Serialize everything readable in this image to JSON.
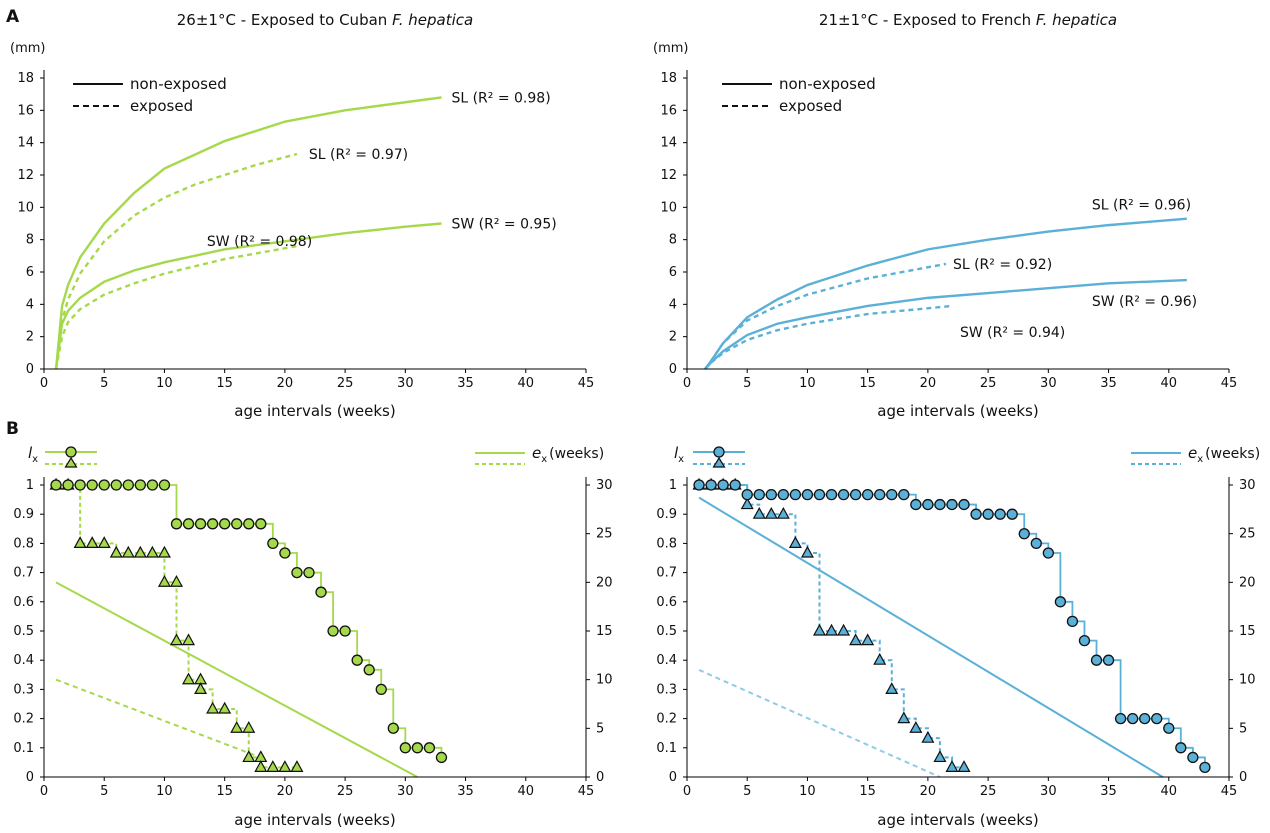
{
  "colors": {
    "green": "#a5d94b",
    "blue": "#5bb0d8",
    "ink": "#111111"
  },
  "panels": {
    "A": "A",
    "B": "B"
  },
  "legend": {
    "non_exposed": "non-exposed",
    "exposed": "exposed",
    "lx_main": "l",
    "lx_sub": "x",
    "ex_main": "e",
    "ex_sub": "x",
    "ex_unit": "(weeks)"
  },
  "charts": {
    "growth_left": {
      "type": "line",
      "title_pre": "26±1°C - Exposed to Cuban ",
      "title_italic": "F. hepatica",
      "unit": "(mm)",
      "xlabel": "age intervals (weeks)",
      "xlim": [
        0,
        45
      ],
      "ylim": [
        0,
        18
      ],
      "xticks": [
        0,
        5,
        10,
        15,
        20,
        25,
        30,
        35,
        40,
        45
      ],
      "yticks": [
        0,
        2,
        4,
        6,
        8,
        10,
        12,
        14,
        16,
        18
      ],
      "series": [
        {
          "label": "SL (R² = 0.98)",
          "style": "solid",
          "x": [
            1,
            1.5,
            2,
            3,
            5,
            7.5,
            10,
            15,
            20,
            25,
            30,
            33
          ],
          "y": [
            0,
            3.9,
            5.2,
            6.9,
            9.0,
            10.9,
            12.4,
            14.1,
            15.3,
            16.0,
            16.5,
            16.8
          ]
        },
        {
          "label": "SL (R² = 0.97)",
          "style": "dashed",
          "x": [
            1,
            1.5,
            2,
            3,
            5,
            7.5,
            10,
            12.5,
            15,
            17.5,
            21
          ],
          "y": [
            0,
            3.0,
            4.3,
            5.9,
            7.9,
            9.5,
            10.6,
            11.4,
            12.0,
            12.6,
            13.3
          ]
        },
        {
          "label": "SW (R² = 0.95)",
          "style": "solid",
          "x": [
            1,
            1.5,
            2,
            3,
            5,
            7.5,
            10,
            15,
            20,
            25,
            30,
            33
          ],
          "y": [
            0,
            2.8,
            3.6,
            4.4,
            5.4,
            6.1,
            6.6,
            7.4,
            7.9,
            8.4,
            8.8,
            9.0
          ]
        },
        {
          "label": "SW (R² = 0.98)",
          "style": "dashed",
          "x": [
            1,
            1.5,
            2,
            3,
            5,
            7.5,
            10,
            15,
            21
          ],
          "y": [
            0,
            2.0,
            2.9,
            3.7,
            4.6,
            5.3,
            5.9,
            6.8,
            7.6
          ]
        }
      ]
    },
    "growth_right": {
      "type": "line",
      "title_pre": "21±1°C - Exposed to French ",
      "title_italic": "F. hepatica",
      "unit": "(mm)",
      "xlabel": "age intervals (weeks)",
      "xlim": [
        0,
        45
      ],
      "ylim": [
        0,
        18
      ],
      "xticks": [
        0,
        5,
        10,
        15,
        20,
        25,
        30,
        35,
        40,
        45
      ],
      "yticks": [
        0,
        2,
        4,
        6,
        8,
        10,
        12,
        14,
        16,
        18
      ],
      "series": [
        {
          "label": "SL (R² = 0.96)",
          "style": "solid",
          "x": [
            1.5,
            2,
            3,
            5,
            7.5,
            10,
            15,
            20,
            25,
            30,
            35,
            41.5
          ],
          "y": [
            0,
            0.5,
            1.6,
            3.2,
            4.3,
            5.2,
            6.4,
            7.4,
            8.0,
            8.5,
            8.9,
            9.3
          ]
        },
        {
          "label": "SL (R² = 0.92)",
          "style": "dashed",
          "x": [
            1.5,
            2,
            3,
            5,
            7.5,
            10,
            15,
            21.5
          ],
          "y": [
            0,
            0.5,
            1.6,
            3.0,
            3.9,
            4.6,
            5.6,
            6.5
          ]
        },
        {
          "label": "SW (R² = 0.96)",
          "style": "solid",
          "x": [
            1.5,
            2,
            3,
            5,
            7.5,
            10,
            15,
            20,
            25,
            30,
            35,
            41.5
          ],
          "y": [
            0,
            0.4,
            1.1,
            2.1,
            2.8,
            3.2,
            3.9,
            4.4,
            4.7,
            5.0,
            5.3,
            5.5
          ]
        },
        {
          "label": "SW (R² = 0.94)",
          "style": "dashed",
          "x": [
            1.5,
            2,
            3,
            5,
            7.5,
            10,
            15,
            22
          ],
          "y": [
            0,
            0.4,
            1.0,
            1.8,
            2.4,
            2.8,
            3.4,
            3.9
          ]
        }
      ]
    },
    "survival_left": {
      "type": "line",
      "xlabel": "age intervals (weeks)",
      "xlim": [
        0,
        45
      ],
      "ylim": [
        0,
        1
      ],
      "y2lim": [
        0,
        30
      ],
      "xticks": [
        0,
        5,
        10,
        15,
        20,
        25,
        30,
        35,
        40,
        45
      ],
      "yticks": [
        0,
        0.1,
        0.2,
        0.3,
        0.4,
        0.5,
        0.6,
        0.7,
        0.8,
        0.9,
        1
      ],
      "y2ticks": [
        0,
        5,
        10,
        15,
        20,
        25,
        30
      ],
      "lx_non_exposed": {
        "x": [
          1,
          2,
          3,
          4,
          5,
          6,
          7,
          8,
          9,
          10,
          11,
          12,
          13,
          14,
          15,
          16,
          17,
          18,
          19,
          20,
          21,
          22,
          23,
          24,
          25,
          26,
          27,
          28,
          29,
          30,
          31,
          32,
          33
        ],
        "y": [
          1,
          1,
          1,
          1,
          1,
          1,
          1,
          1,
          1,
          1,
          0.867,
          0.867,
          0.867,
          0.867,
          0.867,
          0.867,
          0.867,
          0.867,
          0.8,
          0.767,
          0.7,
          0.7,
          0.633,
          0.5,
          0.5,
          0.4,
          0.367,
          0.3,
          0.167,
          0.1,
          0.1,
          0.1,
          0.067
        ]
      },
      "lx_exposed": {
        "x": [
          1,
          2,
          3,
          4,
          5,
          6,
          7,
          8,
          9,
          10,
          10,
          11,
          11,
          12,
          12,
          13,
          13,
          14,
          15,
          16,
          17,
          17,
          18,
          18,
          19,
          20,
          21
        ],
        "y": [
          1,
          1,
          0.8,
          0.8,
          0.8,
          0.767,
          0.767,
          0.767,
          0.767,
          0.767,
          0.667,
          0.667,
          0.467,
          0.467,
          0.333,
          0.333,
          0.3,
          0.233,
          0.233,
          0.167,
          0.167,
          0.067,
          0.067,
          0.033,
          0.033,
          0.033,
          0.033
        ]
      },
      "ex_non_exposed": {
        "x": [
          1,
          31
        ],
        "y": [
          20,
          0
        ]
      },
      "ex_exposed": {
        "x": [
          1,
          18
        ],
        "y": [
          10,
          2
        ]
      }
    },
    "survival_right": {
      "type": "line",
      "xlabel": "age intervals (weeks)",
      "xlim": [
        0,
        45
      ],
      "ylim": [
        0,
        1
      ],
      "y2lim": [
        0,
        30
      ],
      "xticks": [
        0,
        5,
        10,
        15,
        20,
        25,
        30,
        35,
        40,
        45
      ],
      "yticks": [
        0,
        0.1,
        0.2,
        0.3,
        0.4,
        0.5,
        0.6,
        0.7,
        0.8,
        0.9,
        1
      ],
      "y2ticks": [
        0,
        5,
        10,
        15,
        20,
        25,
        30
      ],
      "lx_non_exposed": {
        "x": [
          1,
          2,
          3,
          4,
          5,
          6,
          7,
          8,
          9,
          10,
          11,
          12,
          13,
          14,
          15,
          16,
          17,
          18,
          19,
          20,
          21,
          22,
          23,
          24,
          25,
          26,
          27,
          28,
          29,
          30,
          31,
          32,
          33,
          34,
          35,
          36,
          37,
          38,
          39,
          40,
          41,
          42,
          43
        ],
        "y": [
          1,
          1,
          1,
          1,
          0.967,
          0.967,
          0.967,
          0.967,
          0.967,
          0.967,
          0.967,
          0.967,
          0.967,
          0.967,
          0.967,
          0.967,
          0.967,
          0.967,
          0.933,
          0.933,
          0.933,
          0.933,
          0.933,
          0.9,
          0.9,
          0.9,
          0.9,
          0.833,
          0.8,
          0.767,
          0.6,
          0.533,
          0.467,
          0.4,
          0.4,
          0.2,
          0.2,
          0.2,
          0.2,
          0.167,
          0.1,
          0.067,
          0.033
        ]
      },
      "lx_exposed": {
        "x": [
          1,
          2,
          3,
          4,
          5,
          6,
          7,
          8,
          9,
          10,
          11,
          12,
          13,
          14,
          15,
          16,
          17,
          18,
          19,
          20,
          21,
          22,
          23
        ],
        "y": [
          1,
          1,
          1,
          1,
          0.933,
          0.9,
          0.9,
          0.9,
          0.8,
          0.767,
          0.5,
          0.5,
          0.5,
          0.467,
          0.467,
          0.4,
          0.3,
          0.2,
          0.167,
          0.133,
          0.067,
          0.033,
          0.033
        ]
      },
      "ex_non_exposed": {
        "x": [
          1,
          39.5
        ],
        "y": [
          28.7,
          0
        ]
      },
      "ex_exposed": {
        "x": [
          1,
          21
        ],
        "y": [
          11,
          0
        ]
      }
    }
  }
}
